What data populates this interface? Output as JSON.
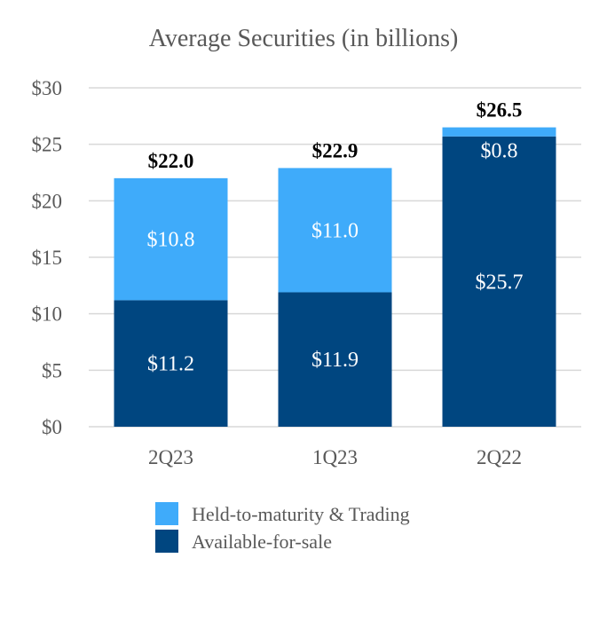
{
  "chart_data": {
    "type": "bar",
    "stacked": true,
    "title": "Average Securities (in billions)",
    "categories": [
      "2Q23",
      "1Q23",
      "2Q22"
    ],
    "series": [
      {
        "name": "Available-for-sale",
        "color": "#004680",
        "values": [
          11.2,
          11.9,
          25.7
        ],
        "labels": [
          "$11.2",
          "$11.9",
          "$25.7"
        ]
      },
      {
        "name": "Held-to-maturity & Trading",
        "color": "#3fabfa",
        "values": [
          10.8,
          11.0,
          0.8
        ],
        "labels": [
          "$10.8",
          "$11.0",
          "$0.8"
        ]
      }
    ],
    "totals": [
      22.0,
      22.9,
      26.5
    ],
    "total_labels": [
      "$22.0",
      "$22.9",
      "$26.5"
    ],
    "y_ticks": [
      0,
      5,
      10,
      15,
      20,
      25,
      30
    ],
    "y_tick_labels": [
      "$0",
      "$5",
      "$10",
      "$15",
      "$20",
      "$25",
      "$30"
    ],
    "ylim": [
      0,
      30
    ],
    "grid": true,
    "legend_order": [
      "Held-to-maturity & Trading",
      "Available-for-sale"
    ],
    "legend_position": "bottom"
  }
}
